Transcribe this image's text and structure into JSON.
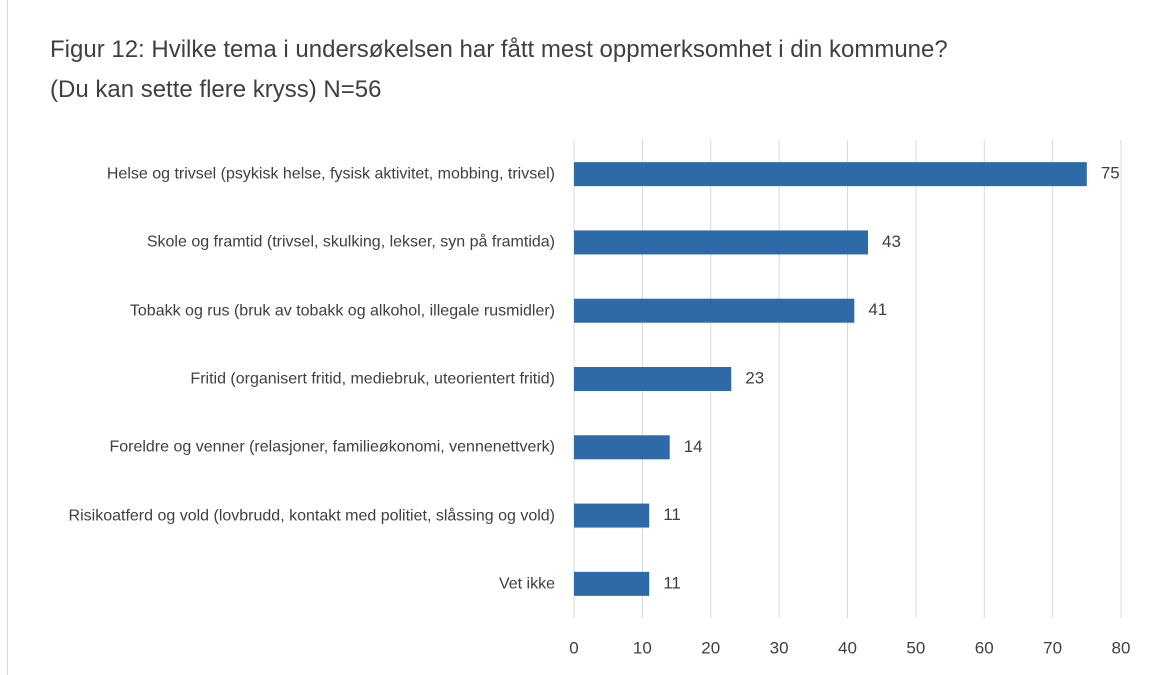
{
  "chart_data": {
    "type": "bar",
    "orientation": "horizontal",
    "title": "Figur 12: Hvilke tema i undersøkelsen har fått mest oppmerksomhet i din kommune?(Du kan sette flere kryss) N=56",
    "categories": [
      "Helse og trivsel (psykisk helse, fysisk aktivitet, mobbing, trivsel)",
      "Skole og framtid (trivsel, skulking, lekser, syn på framtida)",
      "Tobakk og rus (bruk av tobakk og alkohol, illegale rusmidler)",
      "Fritid (organisert fritid, mediebruk, uteorientert fritid)",
      "Foreldre og venner (relasjoner, familieøkonomi, vennenettverk)",
      "Risikoatferd og vold (lovbrudd, kontakt med politiet, slåssing og vold)",
      "Vet ikke"
    ],
    "values": [
      75,
      43,
      41,
      23,
      14,
      11,
      11
    ],
    "color": "#2e6aa8",
    "xlim": [
      0,
      80
    ],
    "xticks": [
      0,
      10,
      20,
      30,
      40,
      50,
      60,
      70,
      80
    ],
    "grid": true
  }
}
